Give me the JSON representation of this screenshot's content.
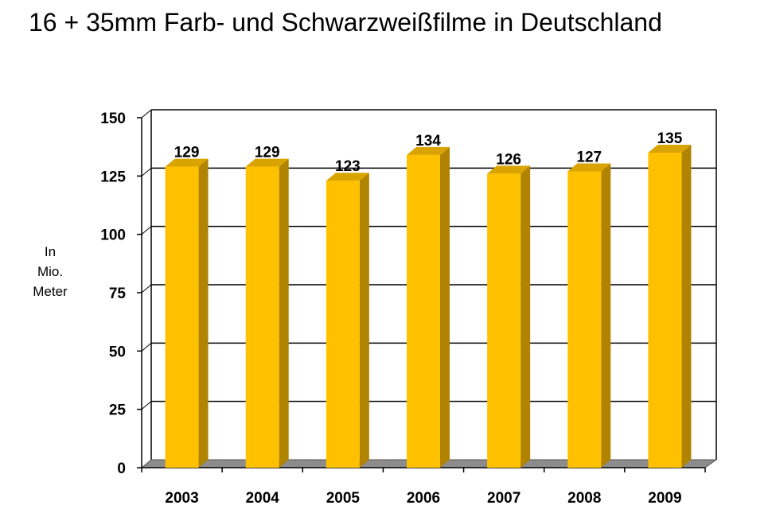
{
  "chart_data": {
    "type": "bar",
    "title": "16 + 35mm Farb- und Schwarzweißfilme in Deutschland",
    "ylabel": [
      "In",
      "Mio.",
      "Meter"
    ],
    "categories": [
      "2003",
      "2004",
      "2005",
      "2006",
      "2007",
      "2008",
      "2009"
    ],
    "values": [
      129,
      129,
      123,
      134,
      126,
      127,
      135
    ],
    "data_labels": [
      "129",
      "129",
      "123",
      "134",
      "126",
      "127",
      "135"
    ],
    "ylim": [
      0,
      150
    ],
    "yticks": [
      "0",
      "25",
      "50",
      "75",
      "100",
      "125",
      "150"
    ],
    "grid": true,
    "colors": {
      "bar_front": "#FFC000",
      "bar_side": "#B08400",
      "bar_top": "#D9A400",
      "floor": "#8C8C8C"
    }
  }
}
